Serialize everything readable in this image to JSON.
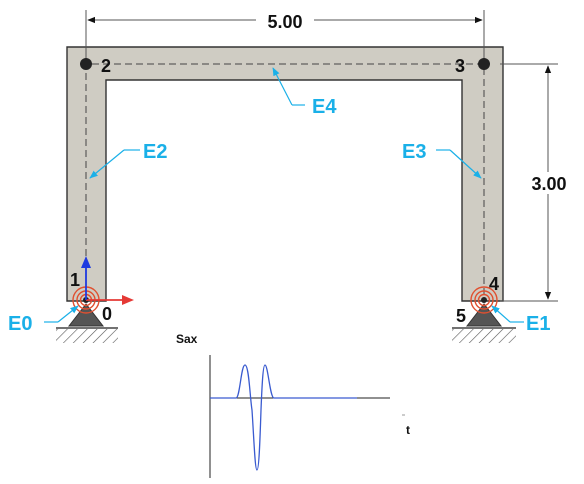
{
  "dimensions": {
    "span": "5.00",
    "height": "3.00"
  },
  "nodes": [
    "0",
    "1",
    "2",
    "3",
    "4",
    "5"
  ],
  "elements": [
    "E0",
    "E1",
    "E2",
    "E3",
    "E4"
  ],
  "signal_plot": {
    "ylabel": "Sax",
    "xlabel": "t"
  },
  "colors": {
    "frame_fill": "#cfccc3",
    "frame_stroke": "#333333",
    "element_label": "#1ab0e8",
    "axis_x_arrow": "#e53935",
    "axis_y_arrow": "#1e3ae0",
    "spring": "#e05030",
    "signal": "#3a5bd0"
  },
  "icons": [
    "x-axis-arrow-icon",
    "y-axis-arrow-icon",
    "spring-icon",
    "support-icon",
    "ground-hatch-icon"
  ]
}
